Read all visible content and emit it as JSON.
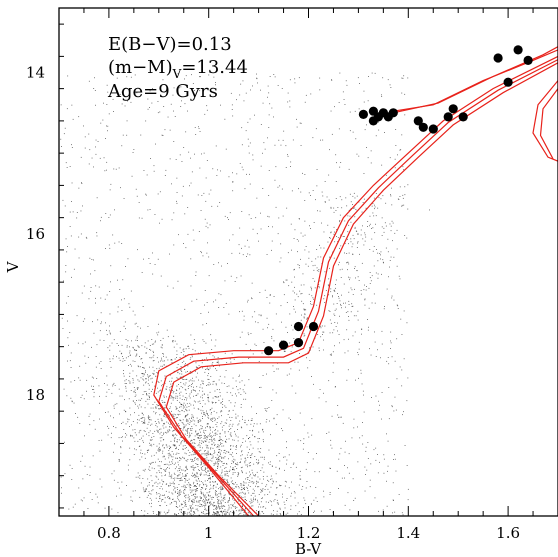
{
  "chart_data": {
    "type": "scatter",
    "title": "",
    "xlabel": "B-V",
    "ylabel": "V",
    "xlim": [
      0.7,
      1.7
    ],
    "ylim": [
      19.5,
      13.2
    ],
    "y_axis_inverted": true,
    "x_major_ticks": [
      0.8,
      1.0,
      1.2,
      1.4,
      1.6
    ],
    "x_tick_labels": [
      "0.8",
      "1",
      "1.2",
      "1.4",
      "1.6"
    ],
    "y_major_ticks": [
      14,
      16,
      18
    ],
    "y_tick_labels": [
      "14",
      "16",
      "18"
    ],
    "grid": false,
    "annotations": {
      "reddening": "E(B−V)=0.13",
      "modulus_main": "(m−M)",
      "modulus_sub": "V",
      "modulus_value": "=13.44",
      "age": "Age=9 Gyrs"
    },
    "colors": {
      "isochrone": "#e8221b",
      "field_stars": "#222222",
      "members": "#000000"
    },
    "series": [
      {
        "kind": "field",
        "values": [
          [
            0.75,
            18.5
          ],
          [
            0.82,
            18.8
          ],
          [
            0.85,
            17.9
          ],
          [
            0.88,
            18.3
          ],
          [
            0.9,
            18.6
          ],
          [
            0.92,
            19.0
          ],
          [
            0.95,
            18.2
          ],
          [
            0.97,
            18.9
          ],
          [
            1.0,
            19.2
          ],
          [
            1.02,
            18.7
          ],
          [
            1.05,
            19.3
          ],
          [
            0.78,
            17.6
          ],
          [
            0.8,
            17.2
          ],
          [
            0.83,
            16.8
          ],
          [
            0.86,
            17.4
          ],
          [
            0.93,
            17.7
          ],
          [
            1.1,
            17.0
          ],
          [
            1.15,
            16.6
          ],
          [
            1.25,
            16.0
          ],
          [
            1.3,
            15.6
          ]
        ]
      },
      {
        "kind": "isochrones",
        "curves": [
          [
            [
              1.08,
              19.5
            ],
            [
              1.0,
              18.9
            ],
            [
              0.93,
              18.4
            ],
            [
              0.89,
              18.0
            ],
            [
              0.9,
              17.7
            ],
            [
              0.96,
              17.5
            ],
            [
              1.05,
              17.45
            ],
            [
              1.14,
              17.45
            ],
            [
              1.18,
              17.35
            ],
            [
              1.21,
              16.9
            ],
            [
              1.23,
              16.3
            ],
            [
              1.27,
              15.8
            ],
            [
              1.33,
              15.4
            ],
            [
              1.4,
              15.0
            ],
            [
              1.47,
              14.6
            ],
            [
              1.57,
              14.2
            ],
            [
              1.7,
              13.8
            ]
          ],
          [
            [
              1.09,
              19.5
            ],
            [
              1.01,
              18.95
            ],
            [
              0.945,
              18.5
            ],
            [
              0.9,
              18.08
            ],
            [
              0.915,
              17.77
            ],
            [
              0.97,
              17.58
            ],
            [
              1.06,
              17.53
            ],
            [
              1.15,
              17.53
            ],
            [
              1.19,
              17.42
            ],
            [
              1.22,
              16.96
            ],
            [
              1.24,
              16.35
            ],
            [
              1.28,
              15.84
            ],
            [
              1.34,
              15.43
            ],
            [
              1.41,
              15.02
            ],
            [
              1.48,
              14.62
            ],
            [
              1.58,
              14.22
            ],
            [
              1.7,
              13.84
            ]
          ],
          [
            [
              1.1,
              19.5
            ],
            [
              1.02,
              19.0
            ],
            [
              0.955,
              18.55
            ],
            [
              0.915,
              18.15
            ],
            [
              0.93,
              17.84
            ],
            [
              0.985,
              17.65
            ],
            [
              1.07,
              17.6
            ],
            [
              1.16,
              17.6
            ],
            [
              1.2,
              17.48
            ],
            [
              1.23,
              17.02
            ],
            [
              1.25,
              16.4
            ],
            [
              1.29,
              15.88
            ],
            [
              1.35,
              15.46
            ],
            [
              1.42,
              15.05
            ],
            [
              1.49,
              14.65
            ],
            [
              1.59,
              14.25
            ],
            [
              1.7,
              13.88
            ]
          ]
        ],
        "agb_curves": [
          [
            [
              1.37,
              14.48
            ],
            [
              1.45,
              14.4
            ],
            [
              1.55,
              14.1
            ],
            [
              1.65,
              13.85
            ],
            [
              1.7,
              13.72
            ]
          ],
          [
            [
              1.37,
              14.5
            ],
            [
              1.46,
              14.38
            ],
            [
              1.57,
              14.05
            ],
            [
              1.67,
              13.78
            ],
            [
              1.7,
              13.68
            ]
          ]
        ],
        "rgb_tip_curves": [
          [
            [
              1.7,
              14.1
            ],
            [
              1.66,
              14.4
            ],
            [
              1.65,
              14.75
            ],
            [
              1.68,
              15.05
            ],
            [
              1.7,
              15.1
            ]
          ],
          [
            [
              1.7,
              14.2
            ],
            [
              1.67,
              14.45
            ],
            [
              1.665,
              14.78
            ],
            [
              1.69,
              15.07
            ]
          ]
        ]
      },
      {
        "kind": "members",
        "values": [
          [
            1.31,
            14.52
          ],
          [
            1.33,
            14.48
          ],
          [
            1.34,
            14.55
          ],
          [
            1.33,
            14.6
          ],
          [
            1.35,
            14.5
          ],
          [
            1.36,
            14.55
          ],
          [
            1.37,
            14.5
          ],
          [
            1.42,
            14.6
          ],
          [
            1.43,
            14.68
          ],
          [
            1.45,
            14.7
          ],
          [
            1.48,
            14.55
          ],
          [
            1.49,
            14.45
          ],
          [
            1.51,
            14.55
          ],
          [
            1.58,
            13.82
          ],
          [
            1.6,
            14.12
          ],
          [
            1.62,
            13.72
          ],
          [
            1.64,
            13.85
          ],
          [
            1.12,
            17.45
          ],
          [
            1.15,
            17.38
          ],
          [
            1.18,
            17.15
          ],
          [
            1.18,
            17.35
          ],
          [
            1.21,
            17.15
          ]
        ]
      }
    ]
  }
}
